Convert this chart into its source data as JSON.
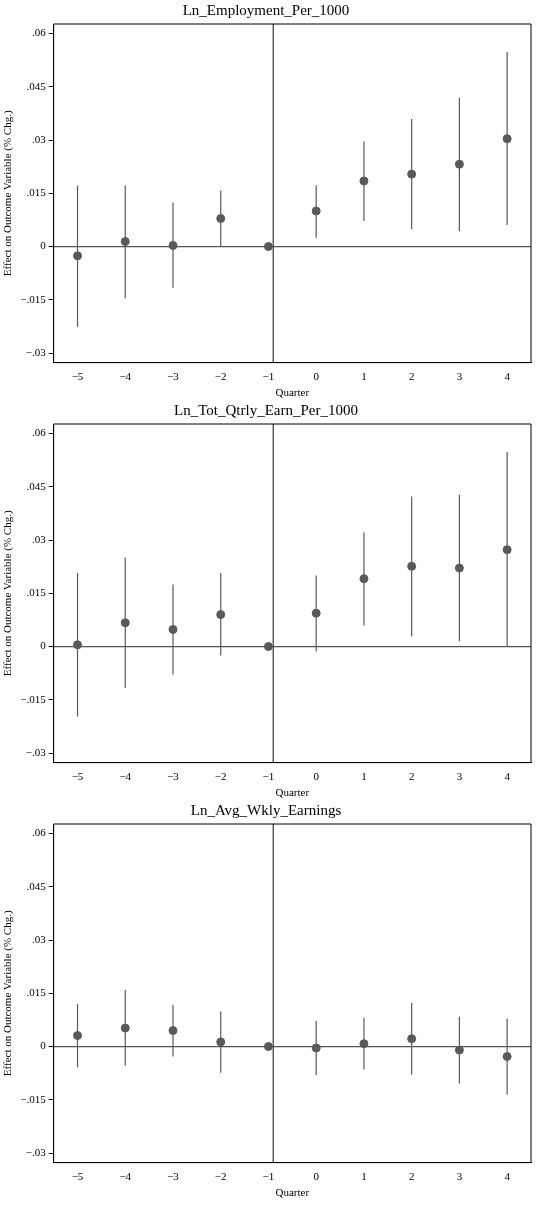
{
  "chart_data": [
    {
      "type": "scatter",
      "title": "Ln_Employment_Per_1000",
      "xlabel": "Quarter",
      "ylabel": "Effect on Outcome Variable (% Chg.)",
      "x": [
        -5,
        -4,
        -3,
        -2,
        -1,
        0,
        1,
        2,
        3,
        4
      ],
      "values": [
        -0.0026,
        0.0014,
        0.0003,
        0.0079,
        0,
        0.01,
        0.0185,
        0.0204,
        0.0232,
        0.0304
      ],
      "errors": [
        [
          -0.0226,
          0.0172
        ],
        [
          -0.0146,
          0.0172
        ],
        [
          -0.0116,
          0.0124
        ],
        [
          0,
          0.0158
        ],
        null,
        [
          0.0025,
          0.0173
        ],
        [
          0.0072,
          0.0296
        ],
        [
          0.0049,
          0.0359
        ],
        [
          0.0044,
          0.0419
        ],
        [
          0.0061,
          0.0548
        ]
      ],
      "color": "#5a5a5a",
      "marker": "circle",
      "grid": false,
      "xlim": [
        -5.5,
        4.5
      ],
      "xticks": [
        {
          "value": -5,
          "label": "−5"
        },
        {
          "value": -4,
          "label": "−4"
        },
        {
          "value": -3,
          "label": "−3"
        },
        {
          "value": -2,
          "label": "−2"
        },
        {
          "value": -1,
          "label": "−1"
        },
        0,
        1,
        2,
        3,
        4
      ],
      "ylim": [
        -0.0327,
        0.0627
      ],
      "yticks": [
        {
          "value": -0.03,
          "label": "−.03"
        },
        {
          "value": -0.015,
          "label": "−.015"
        },
        {
          "value": 0,
          "label": "0"
        },
        {
          "value": 0.015,
          "label": ".015"
        },
        {
          "value": 0.03,
          "label": ".03"
        },
        {
          "value": 0.045,
          "label": ".045"
        },
        {
          "value": 0.06,
          "label": ".06"
        }
      ],
      "ref_lines": [
        {
          "axis": "x",
          "value": -0.9,
          "color": "#333333"
        },
        {
          "axis": "y",
          "value": 0,
          "color": "#555555"
        }
      ]
    },
    {
      "type": "scatter",
      "title": "Ln_Tot_Qtrly_Earn_Per_1000",
      "xlabel": "Quarter",
      "ylabel": "Effect on Outcome Variable (% Chg.)",
      "x": [
        -5,
        -4,
        -3,
        -2,
        -1,
        0,
        1,
        2,
        3,
        4
      ],
      "values": [
        0.0005,
        0.0067,
        0.0048,
        0.009,
        0,
        0.0094,
        0.0191,
        0.0226,
        0.0221,
        0.0273
      ],
      "errors": [
        [
          -0.0197,
          0.0207
        ],
        [
          -0.0116,
          0.0251
        ],
        [
          -0.0079,
          0.0175
        ],
        [
          -0.0025,
          0.0207
        ],
        null,
        [
          -0.0014,
          0.02
        ],
        [
          0.0059,
          0.0322
        ],
        [
          0.0028,
          0.0423
        ],
        [
          0.0015,
          0.0428
        ],
        [
          0,
          0.0548
        ]
      ],
      "color": "#5a5a5a",
      "marker": "circle",
      "grid": false,
      "xlim": [
        -5.5,
        4.5
      ],
      "xticks": [
        {
          "value": -5,
          "label": "−5"
        },
        {
          "value": -4,
          "label": "−4"
        },
        {
          "value": -3,
          "label": "−3"
        },
        {
          "value": -2,
          "label": "−2"
        },
        {
          "value": -1,
          "label": "−1"
        },
        0,
        1,
        2,
        3,
        4
      ],
      "ylim": [
        -0.0327,
        0.0627
      ],
      "yticks": [
        {
          "value": -0.03,
          "label": "−.03"
        },
        {
          "value": -0.015,
          "label": "−.015"
        },
        {
          "value": 0,
          "label": "0"
        },
        {
          "value": 0.015,
          "label": ".015"
        },
        {
          "value": 0.03,
          "label": ".03"
        },
        {
          "value": 0.045,
          "label": ".045"
        },
        {
          "value": 0.06,
          "label": ".06"
        }
      ],
      "ref_lines": [
        {
          "axis": "x",
          "value": -0.9,
          "color": "#333333"
        },
        {
          "axis": "y",
          "value": 0,
          "color": "#555555"
        }
      ]
    },
    {
      "type": "scatter",
      "title": "Ln_Avg_Wkly_Earnings",
      "xlabel": "Quarter",
      "ylabel": "Effect on Outcome Variable (% Chg.)",
      "x": [
        -5,
        -4,
        -3,
        -2,
        -1,
        0,
        1,
        2,
        3,
        4
      ],
      "values": [
        0.0031,
        0.0052,
        0.0045,
        0.0013,
        0,
        -0.0004,
        0.0008,
        0.0022,
        -0.001,
        -0.0028
      ],
      "errors": [
        [
          -0.0058,
          0.012
        ],
        [
          -0.0054,
          0.0159
        ],
        [
          -0.0028,
          0.0118
        ],
        [
          -0.0074,
          0.0099
        ],
        null,
        [
          -0.008,
          0.0072
        ],
        [
          -0.0065,
          0.0081
        ],
        [
          -0.0079,
          0.0123
        ],
        [
          -0.0104,
          0.0084
        ],
        [
          -0.0135,
          0.0079
        ]
      ],
      "color": "#5a5a5a",
      "marker": "circle",
      "grid": false,
      "xlim": [
        -5.5,
        4.5
      ],
      "xticks": [
        {
          "value": -5,
          "label": "−5"
        },
        {
          "value": -4,
          "label": "−4"
        },
        {
          "value": -3,
          "label": "−3"
        },
        {
          "value": -2,
          "label": "−2"
        },
        {
          "value": -1,
          "label": "−1"
        },
        0,
        1,
        2,
        3,
        4
      ],
      "ylim": [
        -0.0327,
        0.0627
      ],
      "yticks": [
        {
          "value": -0.03,
          "label": "−.03"
        },
        {
          "value": -0.015,
          "label": "−.015"
        },
        {
          "value": 0,
          "label": "0"
        },
        {
          "value": 0.015,
          "label": ".015"
        },
        {
          "value": 0.03,
          "label": ".03"
        },
        {
          "value": 0.045,
          "label": ".045"
        },
        {
          "value": 0.06,
          "label": ".06"
        }
      ],
      "ref_lines": [
        {
          "axis": "x",
          "value": -0.9,
          "color": "#333333"
        },
        {
          "axis": "y",
          "value": 0,
          "color": "#555555"
        }
      ]
    }
  ]
}
